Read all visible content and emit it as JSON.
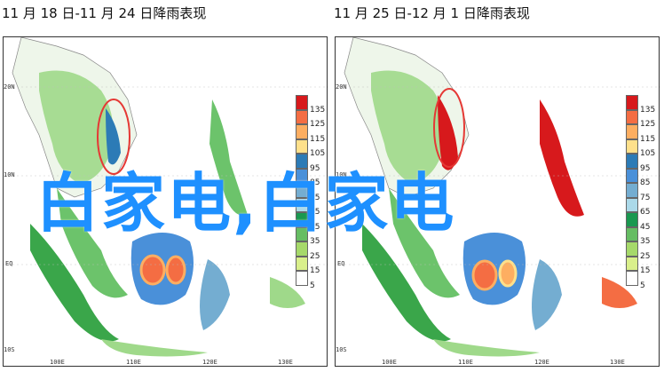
{
  "panels": [
    {
      "title": "11 月 18 日-11 月 24 日降雨表现",
      "lat_labels": [
        "20N",
        "10N",
        "EQ",
        "10S"
      ],
      "lon_labels": [
        "100E",
        "110E",
        "120E",
        "130E"
      ]
    },
    {
      "title": "11 月 25 日-12 月 1 日降雨表现",
      "lat_labels": [
        "20N",
        "10N",
        "EQ",
        "10S"
      ],
      "lon_labels": [
        "100E",
        "110E",
        "120E",
        "130E"
      ]
    }
  ],
  "legend": {
    "values": [
      "135",
      "125",
      "115",
      "105",
      "95",
      "85",
      "75",
      "65",
      "45",
      "35",
      "25",
      "15",
      "5"
    ],
    "colors": [
      "#d7191c",
      "#f46d43",
      "#fdae61",
      "#fee08b",
      "#2c7bb6",
      "#4a90d9",
      "#74add1",
      "#abd9e9",
      "#1a9850",
      "#66bd63",
      "#a6d96a",
      "#d9ef8b",
      "#ffffff"
    ]
  },
  "watermark": "白家电,白家电",
  "colors": {
    "land": "#9fd98a",
    "land_dark": "#3aa64a",
    "heavy": "#d7191c",
    "blue": "#3f7fd9",
    "highlight_circle": "#e53935"
  }
}
